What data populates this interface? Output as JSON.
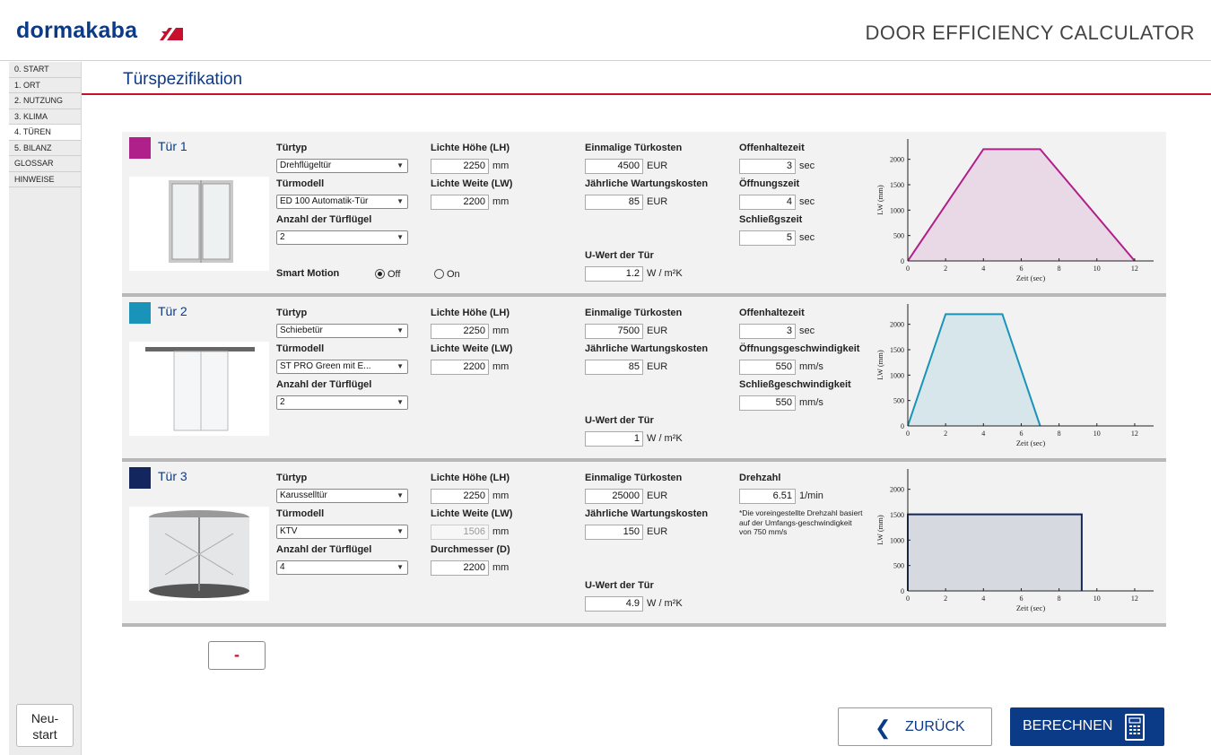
{
  "header": {
    "logo": "dormakaba",
    "title": "DOOR EFFICIENCY CALCULATOR"
  },
  "sidebar": {
    "items": [
      "0. START",
      "1. ORT",
      "2. NUTZUNG",
      "3. KLIMA",
      "4. TÜREN",
      "5. BILANZ",
      "GLOSSAR",
      "HINWEISE"
    ],
    "active_index": 4,
    "restart_line1": "Neu-",
    "restart_line2": "start"
  },
  "page": {
    "title": "Türspezifikation"
  },
  "labels": {
    "door_type": "Türtyp",
    "door_model": "Türmodell",
    "leaf_count": "Anzahl der Türflügel",
    "clear_height": "Lichte Höhe (LH)",
    "clear_width": "Lichte Weite (LW)",
    "diameter": "Durchmesser (D)",
    "one_time_cost": "Einmalige Türkosten",
    "annual_maintenance": "Jährliche Wartungskosten",
    "u_value": "U-Wert der Tür",
    "hold_open": "Offenhaltezeit",
    "opening_time": "Öffnungszeit",
    "closing_time": "Schließgszeit",
    "opening_speed": "Öffnungsgeschwindigkeit",
    "closing_speed": "Schließgeschwindigkeit",
    "rotation": "Drehzahl",
    "smart_motion": "Smart Motion",
    "off": "Off",
    "on": "On",
    "mm": "mm",
    "eur": "EUR",
    "sec": "sec",
    "mms": "mm/s",
    "per_min": "1/min",
    "wm2k": "W / m²K"
  },
  "doors": [
    {
      "name": "Tür 1",
      "color": "#b0208a",
      "type": "Drehflügeltür",
      "model": "ED 100 Automatik-Tür",
      "leaves": "2",
      "height": "2250",
      "width": "2200",
      "cost": "4500",
      "maintenance": "85",
      "u_value": "1.2",
      "hold_open": "3",
      "opening": "4",
      "closing": "5",
      "smart_motion": "Off"
    },
    {
      "name": "Tür 2",
      "color": "#1a93b8",
      "type": "Schiebetür",
      "model": "ST PRO Green mit E...",
      "leaves": "2",
      "height": "2250",
      "width": "2200",
      "cost": "7500",
      "maintenance": "85",
      "u_value": "1",
      "hold_open": "3",
      "opening_speed": "550",
      "closing_speed": "550"
    },
    {
      "name": "Tür 3",
      "color": "#13275e",
      "type": "Karusselltür",
      "model": "KTV",
      "leaves": "4",
      "height": "2250",
      "width": "1506",
      "diameter": "2200",
      "cost": "25000",
      "maintenance": "150",
      "u_value": "4.9",
      "rotation": "6.51",
      "note": "*Die voreingestellte Drehzahl basiert auf der Umfangs-geschwindigkeit von 750 mm/s"
    }
  ],
  "chart_data": [
    {
      "type": "area",
      "series": [
        {
          "name": "Tür 1",
          "x": [
            0,
            4,
            7,
            12
          ],
          "y": [
            0,
            2200,
            2200,
            0
          ]
        }
      ],
      "xlabel": "Zeit (sec)",
      "ylabel": "LW (mm)",
      "xlim": [
        0,
        13
      ],
      "ylim": [
        0,
        2400
      ],
      "xticks": [
        0,
        2,
        4,
        6,
        8,
        10,
        12
      ],
      "yticks": [
        0,
        500,
        1000,
        1500,
        2000
      ]
    },
    {
      "type": "area",
      "series": [
        {
          "name": "Tür 2",
          "x": [
            0,
            2,
            5,
            7
          ],
          "y": [
            0,
            2200,
            2200,
            0
          ]
        }
      ],
      "xlabel": "Zeit (sec)",
      "ylabel": "LW (mm)",
      "xlim": [
        0,
        13
      ],
      "ylim": [
        0,
        2400
      ],
      "xticks": [
        0,
        2,
        4,
        6,
        8,
        10,
        12
      ],
      "yticks": [
        0,
        500,
        1000,
        1500,
        2000
      ]
    },
    {
      "type": "area",
      "series": [
        {
          "name": "Tür 3",
          "x": [
            0,
            0,
            9.2,
            9.2
          ],
          "y": [
            0,
            1506,
            1506,
            0
          ]
        }
      ],
      "xlabel": "Zeit (sec)",
      "ylabel": "LW (mm)",
      "xlim": [
        0,
        13
      ],
      "ylim": [
        0,
        2400
      ],
      "xticks": [
        0,
        2,
        4,
        6,
        8,
        10,
        12
      ],
      "yticks": [
        0,
        500,
        1000,
        1500,
        2000
      ]
    }
  ],
  "actions": {
    "remove": "-",
    "back": "ZURÜCK",
    "calculate": "BERECHNEN"
  }
}
